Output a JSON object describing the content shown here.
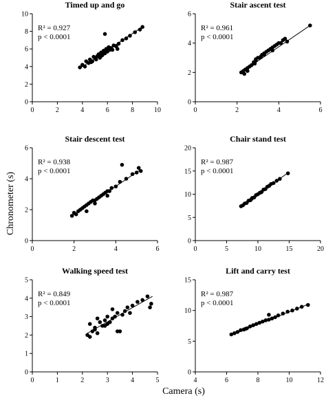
{
  "figure": {
    "ylabel": "Chronometer (s)",
    "xlabel": "Camera (s)"
  },
  "chart_data": [
    {
      "type": "scatter",
      "title": "Timed up and go",
      "stats": [
        "R² = 0.927",
        "p < 0.0001"
      ],
      "xlim": [
        0,
        10
      ],
      "ylim": [
        0,
        10
      ],
      "xticks": [
        0,
        2,
        4,
        6,
        8,
        10
      ],
      "yticks": [
        0,
        2,
        4,
        6,
        8,
        10
      ],
      "regression": {
        "x": [
          3.8,
          8.8
        ],
        "y": [
          3.8,
          8.5
        ]
      },
      "series": [
        {
          "x": [
            3.8,
            4.0,
            4.2,
            4.3,
            4.5,
            4.6,
            4.8,
            4.9,
            5.0,
            5.1,
            5.2,
            5.3,
            5.4,
            5.5,
            5.6,
            5.7,
            5.8,
            5.9,
            6.0,
            6.1,
            6.2,
            6.3,
            6.5,
            6.7,
            6.9,
            7.2,
            7.5,
            7.8,
            8.2,
            8.6,
            8.8,
            5.8,
            4.7,
            5.5,
            6.4,
            6.8
          ],
          "y": [
            3.9,
            4.2,
            4.0,
            4.6,
            4.4,
            4.8,
            4.6,
            5.1,
            5.0,
            4.8,
            5.2,
            5.4,
            5.0,
            5.6,
            5.3,
            5.8,
            5.5,
            6.0,
            5.7,
            6.2,
            5.9,
            6.1,
            6.4,
            6.3,
            6.6,
            7.0,
            7.2,
            7.5,
            7.9,
            8.2,
            8.5,
            7.7,
            4.5,
            5.2,
            5.9,
            6.0
          ]
        }
      ]
    },
    {
      "type": "scatter",
      "title": "Stair ascent test",
      "stats": [
        "R² = 0.961",
        "p < 0.0001"
      ],
      "xlim": [
        0,
        6
      ],
      "ylim": [
        0,
        6
      ],
      "xticks": [
        0,
        2,
        4,
        6
      ],
      "yticks": [
        0,
        2,
        4,
        6
      ],
      "regression": {
        "x": [
          2.2,
          5.5
        ],
        "y": [
          2.0,
          5.2
        ]
      },
      "series": [
        {
          "x": [
            2.2,
            2.3,
            2.35,
            2.4,
            2.5,
            2.6,
            2.7,
            2.8,
            2.85,
            2.9,
            3.0,
            3.1,
            3.15,
            3.2,
            3.3,
            3.4,
            3.5,
            3.6,
            3.7,
            3.8,
            3.9,
            4.0,
            4.1,
            4.2,
            4.3,
            4.4,
            5.5,
            2.5,
            2.9,
            3.3,
            3.7
          ],
          "y": [
            2.0,
            2.1,
            1.9,
            2.2,
            2.3,
            2.4,
            2.5,
            2.7,
            2.6,
            2.8,
            3.0,
            3.0,
            3.1,
            3.2,
            3.3,
            3.4,
            3.5,
            3.6,
            3.7,
            3.8,
            3.9,
            4.0,
            4.0,
            4.2,
            4.3,
            4.1,
            5.2,
            2.1,
            2.9,
            3.2,
            3.5
          ]
        }
      ]
    },
    {
      "type": "scatter",
      "title": "Stair descent test",
      "stats": [
        "R² = 0.938",
        "p < 0.0001"
      ],
      "xlim": [
        0,
        6
      ],
      "ylim": [
        0,
        6
      ],
      "xticks": [
        0,
        2,
        4,
        6
      ],
      "yticks": [
        0,
        2,
        4,
        6
      ],
      "regression": {
        "x": [
          1.9,
          5.2
        ],
        "y": [
          1.6,
          4.6
        ]
      },
      "series": [
        {
          "x": [
            1.9,
            2.0,
            2.1,
            2.2,
            2.3,
            2.4,
            2.5,
            2.6,
            2.7,
            2.8,
            2.9,
            3.0,
            3.1,
            3.2,
            3.3,
            3.4,
            3.5,
            3.6,
            3.7,
            3.8,
            4.0,
            4.2,
            4.5,
            4.8,
            5.0,
            5.1,
            5.2,
            3.0,
            3.6,
            4.3,
            2.6
          ],
          "y": [
            1.6,
            1.8,
            1.7,
            1.9,
            2.0,
            2.1,
            2.2,
            2.3,
            2.4,
            2.5,
            2.6,
            2.6,
            2.7,
            2.8,
            2.9,
            3.0,
            3.1,
            3.2,
            3.2,
            3.4,
            3.5,
            3.8,
            4.0,
            4.3,
            4.4,
            4.7,
            4.5,
            2.4,
            2.9,
            4.9,
            1.9
          ]
        }
      ]
    },
    {
      "type": "scatter",
      "title": "Chair stand test",
      "stats": [
        "R² = 0.987",
        "p < 0.0001"
      ],
      "xlim": [
        0,
        20
      ],
      "ylim": [
        0,
        20
      ],
      "xticks": [
        0,
        5,
        10,
        15,
        20
      ],
      "yticks": [
        0,
        5,
        10,
        15,
        20
      ],
      "regression": {
        "x": [
          7.3,
          14.8
        ],
        "y": [
          7.3,
          14.6
        ]
      },
      "series": [
        {
          "x": [
            7.3,
            7.6,
            7.9,
            8.2,
            8.5,
            8.8,
            9.1,
            9.4,
            9.7,
            10.0,
            10.3,
            10.6,
            10.9,
            11.2,
            11.5,
            11.8,
            12.1,
            12.5,
            13.0,
            13.5,
            14.8,
            9.0,
            10.5
          ],
          "y": [
            7.4,
            7.6,
            8.0,
            8.1,
            8.6,
            8.7,
            9.2,
            9.3,
            9.8,
            10.0,
            10.3,
            10.5,
            11.0,
            11.1,
            11.6,
            11.8,
            12.2,
            12.4,
            12.9,
            13.3,
            14.5,
            9.0,
            10.4
          ]
        }
      ]
    },
    {
      "type": "scatter",
      "title": "Walking speed test",
      "stats": [
        "R² = 0.849",
        "p < 0.0001"
      ],
      "xlim": [
        0,
        5
      ],
      "ylim": [
        0,
        5
      ],
      "xticks": [
        0,
        1,
        2,
        3,
        4,
        5
      ],
      "yticks": [
        0,
        1,
        2,
        3,
        4,
        5
      ],
      "regression": {
        "x": [
          2.2,
          4.8
        ],
        "y": [
          2.1,
          4.1
        ]
      },
      "series": [
        {
          "x": [
            2.2,
            2.3,
            2.4,
            2.5,
            2.6,
            2.7,
            2.8,
            2.9,
            3.0,
            3.0,
            3.1,
            3.2,
            3.3,
            3.4,
            3.5,
            3.6,
            3.7,
            3.8,
            3.9,
            4.0,
            4.2,
            4.4,
            4.6,
            4.7,
            4.75,
            2.3,
            2.6,
            3.2,
            3.4,
            2.5,
            2.9
          ],
          "y": [
            2.0,
            2.6,
            2.2,
            2.4,
            2.1,
            2.7,
            2.5,
            2.8,
            2.6,
            3.0,
            2.7,
            2.9,
            3.0,
            3.2,
            2.2,
            3.1,
            3.3,
            3.5,
            3.2,
            3.6,
            3.8,
            3.9,
            4.1,
            3.5,
            3.7,
            1.9,
            2.9,
            3.4,
            2.2,
            2.3,
            2.5
          ]
        }
      ]
    },
    {
      "type": "scatter",
      "title": "Lift and carry test",
      "stats": [
        "R² = 0.987",
        "p < 0.0001"
      ],
      "xlim": [
        4,
        12
      ],
      "ylim": [
        0,
        15
      ],
      "xticks": [
        4,
        6,
        8,
        10,
        12
      ],
      "yticks": [
        0,
        5,
        10,
        15
      ],
      "regression": {
        "x": [
          6.3,
          11.2
        ],
        "y": [
          6.0,
          11.0
        ]
      },
      "series": [
        {
          "x": [
            6.3,
            6.5,
            6.7,
            6.9,
            7.1,
            7.3,
            7.5,
            7.7,
            7.9,
            8.1,
            8.3,
            8.5,
            8.7,
            8.9,
            9.1,
            9.3,
            9.6,
            9.9,
            10.2,
            10.5,
            10.8,
            11.2,
            8.7,
            7.2
          ],
          "y": [
            6.1,
            6.3,
            6.5,
            6.8,
            6.9,
            7.1,
            7.4,
            7.6,
            7.8,
            8.0,
            8.2,
            8.4,
            8.5,
            8.7,
            8.9,
            9.2,
            9.5,
            9.8,
            10.0,
            10.3,
            10.6,
            10.9,
            9.3,
            7.0
          ]
        }
      ]
    }
  ]
}
